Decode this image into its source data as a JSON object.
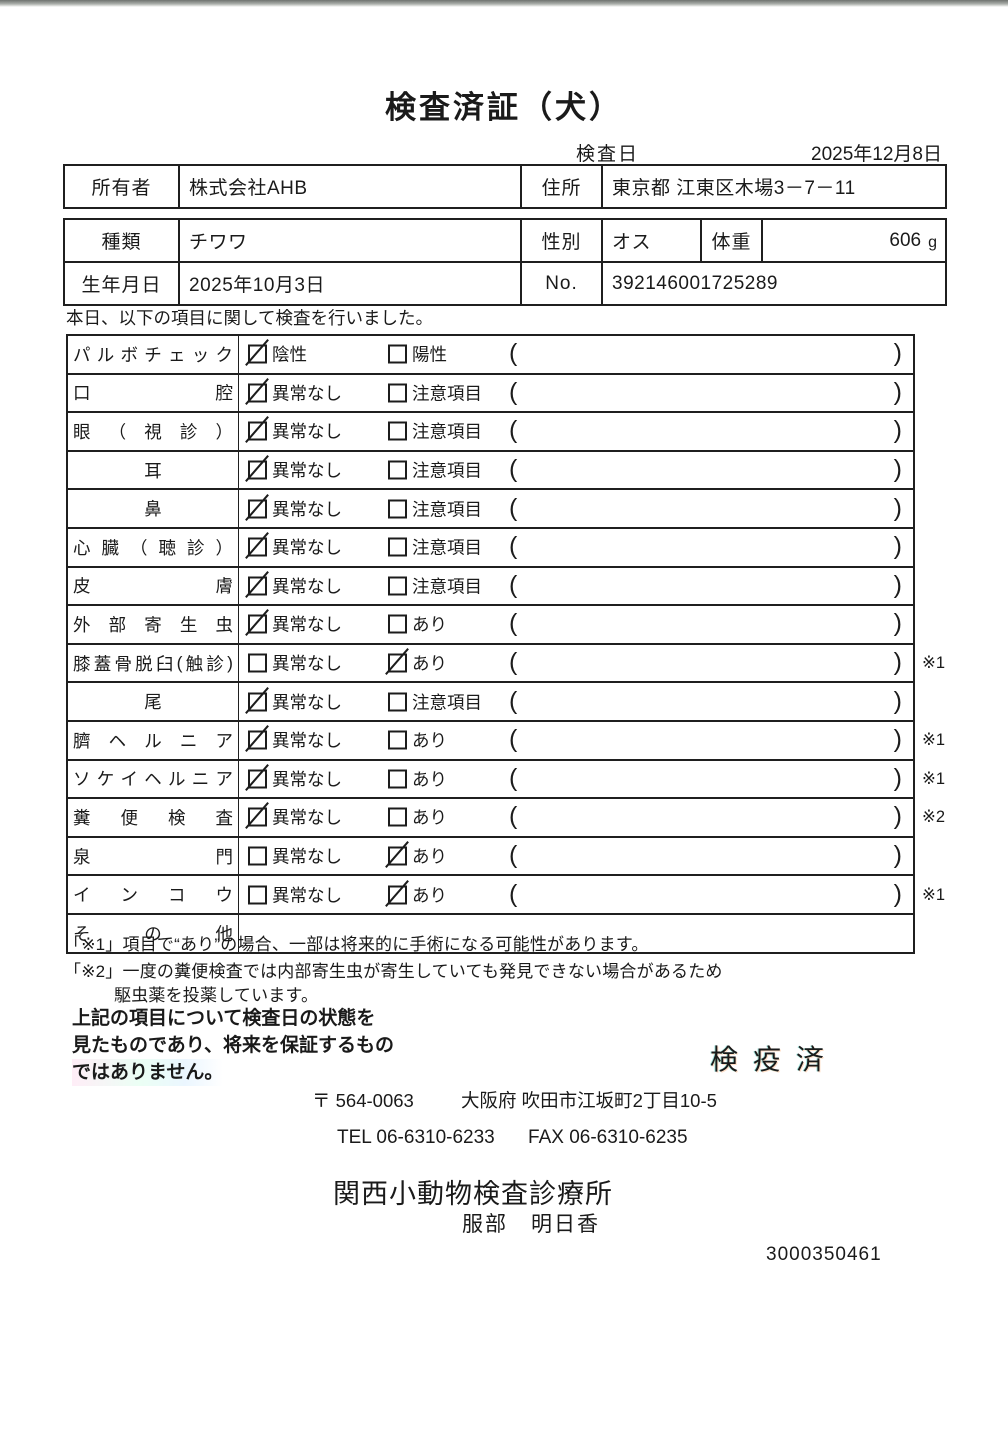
{
  "page": {
    "title": "検査済証（犬）",
    "exam_date_label": "検査日",
    "exam_date_value": "2025年12月8日"
  },
  "owner_table": {
    "owner_label": "所有者",
    "owner_value": "株式会社AHB",
    "address_label": "住所",
    "address_value": "東京都 江東区木場3－7－11"
  },
  "animal_table": {
    "species_label": "種類",
    "species_value": "チワワ",
    "sex_label": "性別",
    "sex_value": "オス",
    "weight_label": "体重",
    "weight_value": "606",
    "weight_unit": "g",
    "birth_label": "生年月日",
    "birth_value": "2025年10月3日",
    "no_label": "No.",
    "no_value": "392146001725289"
  },
  "intro_text": "本日、以下の項目に関して検査を行いました。",
  "exam_table": {
    "paren_open": "(",
    "paren_close": ")",
    "rows": [
      {
        "label": "パルボチェック",
        "opt1": "陰性",
        "opt1_checked": true,
        "opt2": "陽性",
        "opt2_checked": false,
        "note": ""
      },
      {
        "label": "口腔",
        "opt1": "異常なし",
        "opt1_checked": true,
        "opt2": "注意項目",
        "opt2_checked": false,
        "note": ""
      },
      {
        "label": "眼（視診）",
        "opt1": "異常なし",
        "opt1_checked": true,
        "opt2": "注意項目",
        "opt2_checked": false,
        "note": ""
      },
      {
        "label": "耳",
        "opt1": "異常なし",
        "opt1_checked": true,
        "opt2": "注意項目",
        "opt2_checked": false,
        "note": ""
      },
      {
        "label": "鼻",
        "opt1": "異常なし",
        "opt1_checked": true,
        "opt2": "注意項目",
        "opt2_checked": false,
        "note": ""
      },
      {
        "label": "心臓（聴診）",
        "opt1": "異常なし",
        "opt1_checked": true,
        "opt2": "注意項目",
        "opt2_checked": false,
        "note": ""
      },
      {
        "label": "皮膚",
        "opt1": "異常なし",
        "opt1_checked": true,
        "opt2": "注意項目",
        "opt2_checked": false,
        "note": ""
      },
      {
        "label": "外部寄生虫",
        "opt1": "異常なし",
        "opt1_checked": true,
        "opt2": "あり",
        "opt2_checked": false,
        "note": ""
      },
      {
        "label": "膝蓋骨脱臼(触診)",
        "opt1": "異常なし",
        "opt1_checked": false,
        "opt2": "あり",
        "opt2_checked": true,
        "note": "※1"
      },
      {
        "label": "尾",
        "opt1": "異常なし",
        "opt1_checked": true,
        "opt2": "注意項目",
        "opt2_checked": false,
        "note": ""
      },
      {
        "label": "臍ヘルニア",
        "opt1": "異常なし",
        "opt1_checked": true,
        "opt2": "あり",
        "opt2_checked": false,
        "note": "※1"
      },
      {
        "label": "ソケイヘルニア",
        "opt1": "異常なし",
        "opt1_checked": true,
        "opt2": "あり",
        "opt2_checked": false,
        "note": "※1"
      },
      {
        "label": "糞便検査",
        "opt1": "異常なし",
        "opt1_checked": true,
        "opt2": "あり",
        "opt2_checked": false,
        "note": "※2"
      },
      {
        "label": "泉門",
        "opt1": "異常なし",
        "opt1_checked": false,
        "opt2": "あり",
        "opt2_checked": true,
        "note": ""
      },
      {
        "label": "インコウ",
        "opt1": "異常なし",
        "opt1_checked": false,
        "opt2": "あり",
        "opt2_checked": true,
        "note": "※1"
      },
      {
        "label": "その他"
      }
    ]
  },
  "footnotes": {
    "line1": "「※1」項目で“あり”の場合、一部は将来的に手術になる可能性があります。",
    "line2a": "「※2」一度の糞便検査では内部寄生虫が寄生していても発見できない場合があるため",
    "line2b": "駆虫薬を投薬しています。"
  },
  "disclaimer": {
    "line1": "上記の項目について検査日の状態を",
    "line2": "見たものであり、将来を保証するもの",
    "line3": "ではありません。"
  },
  "stamp_text": "検疫済",
  "clinic": {
    "postal": "〒 564-0063",
    "address": "大阪府 吹田市江坂町2丁目10-5",
    "tel": "TEL 06-6310-6233",
    "fax": "FAX 06-6310-6235",
    "name": "関西小動物検査診療所",
    "vet_name": "服部　明日香",
    "serial": "3000350461"
  }
}
